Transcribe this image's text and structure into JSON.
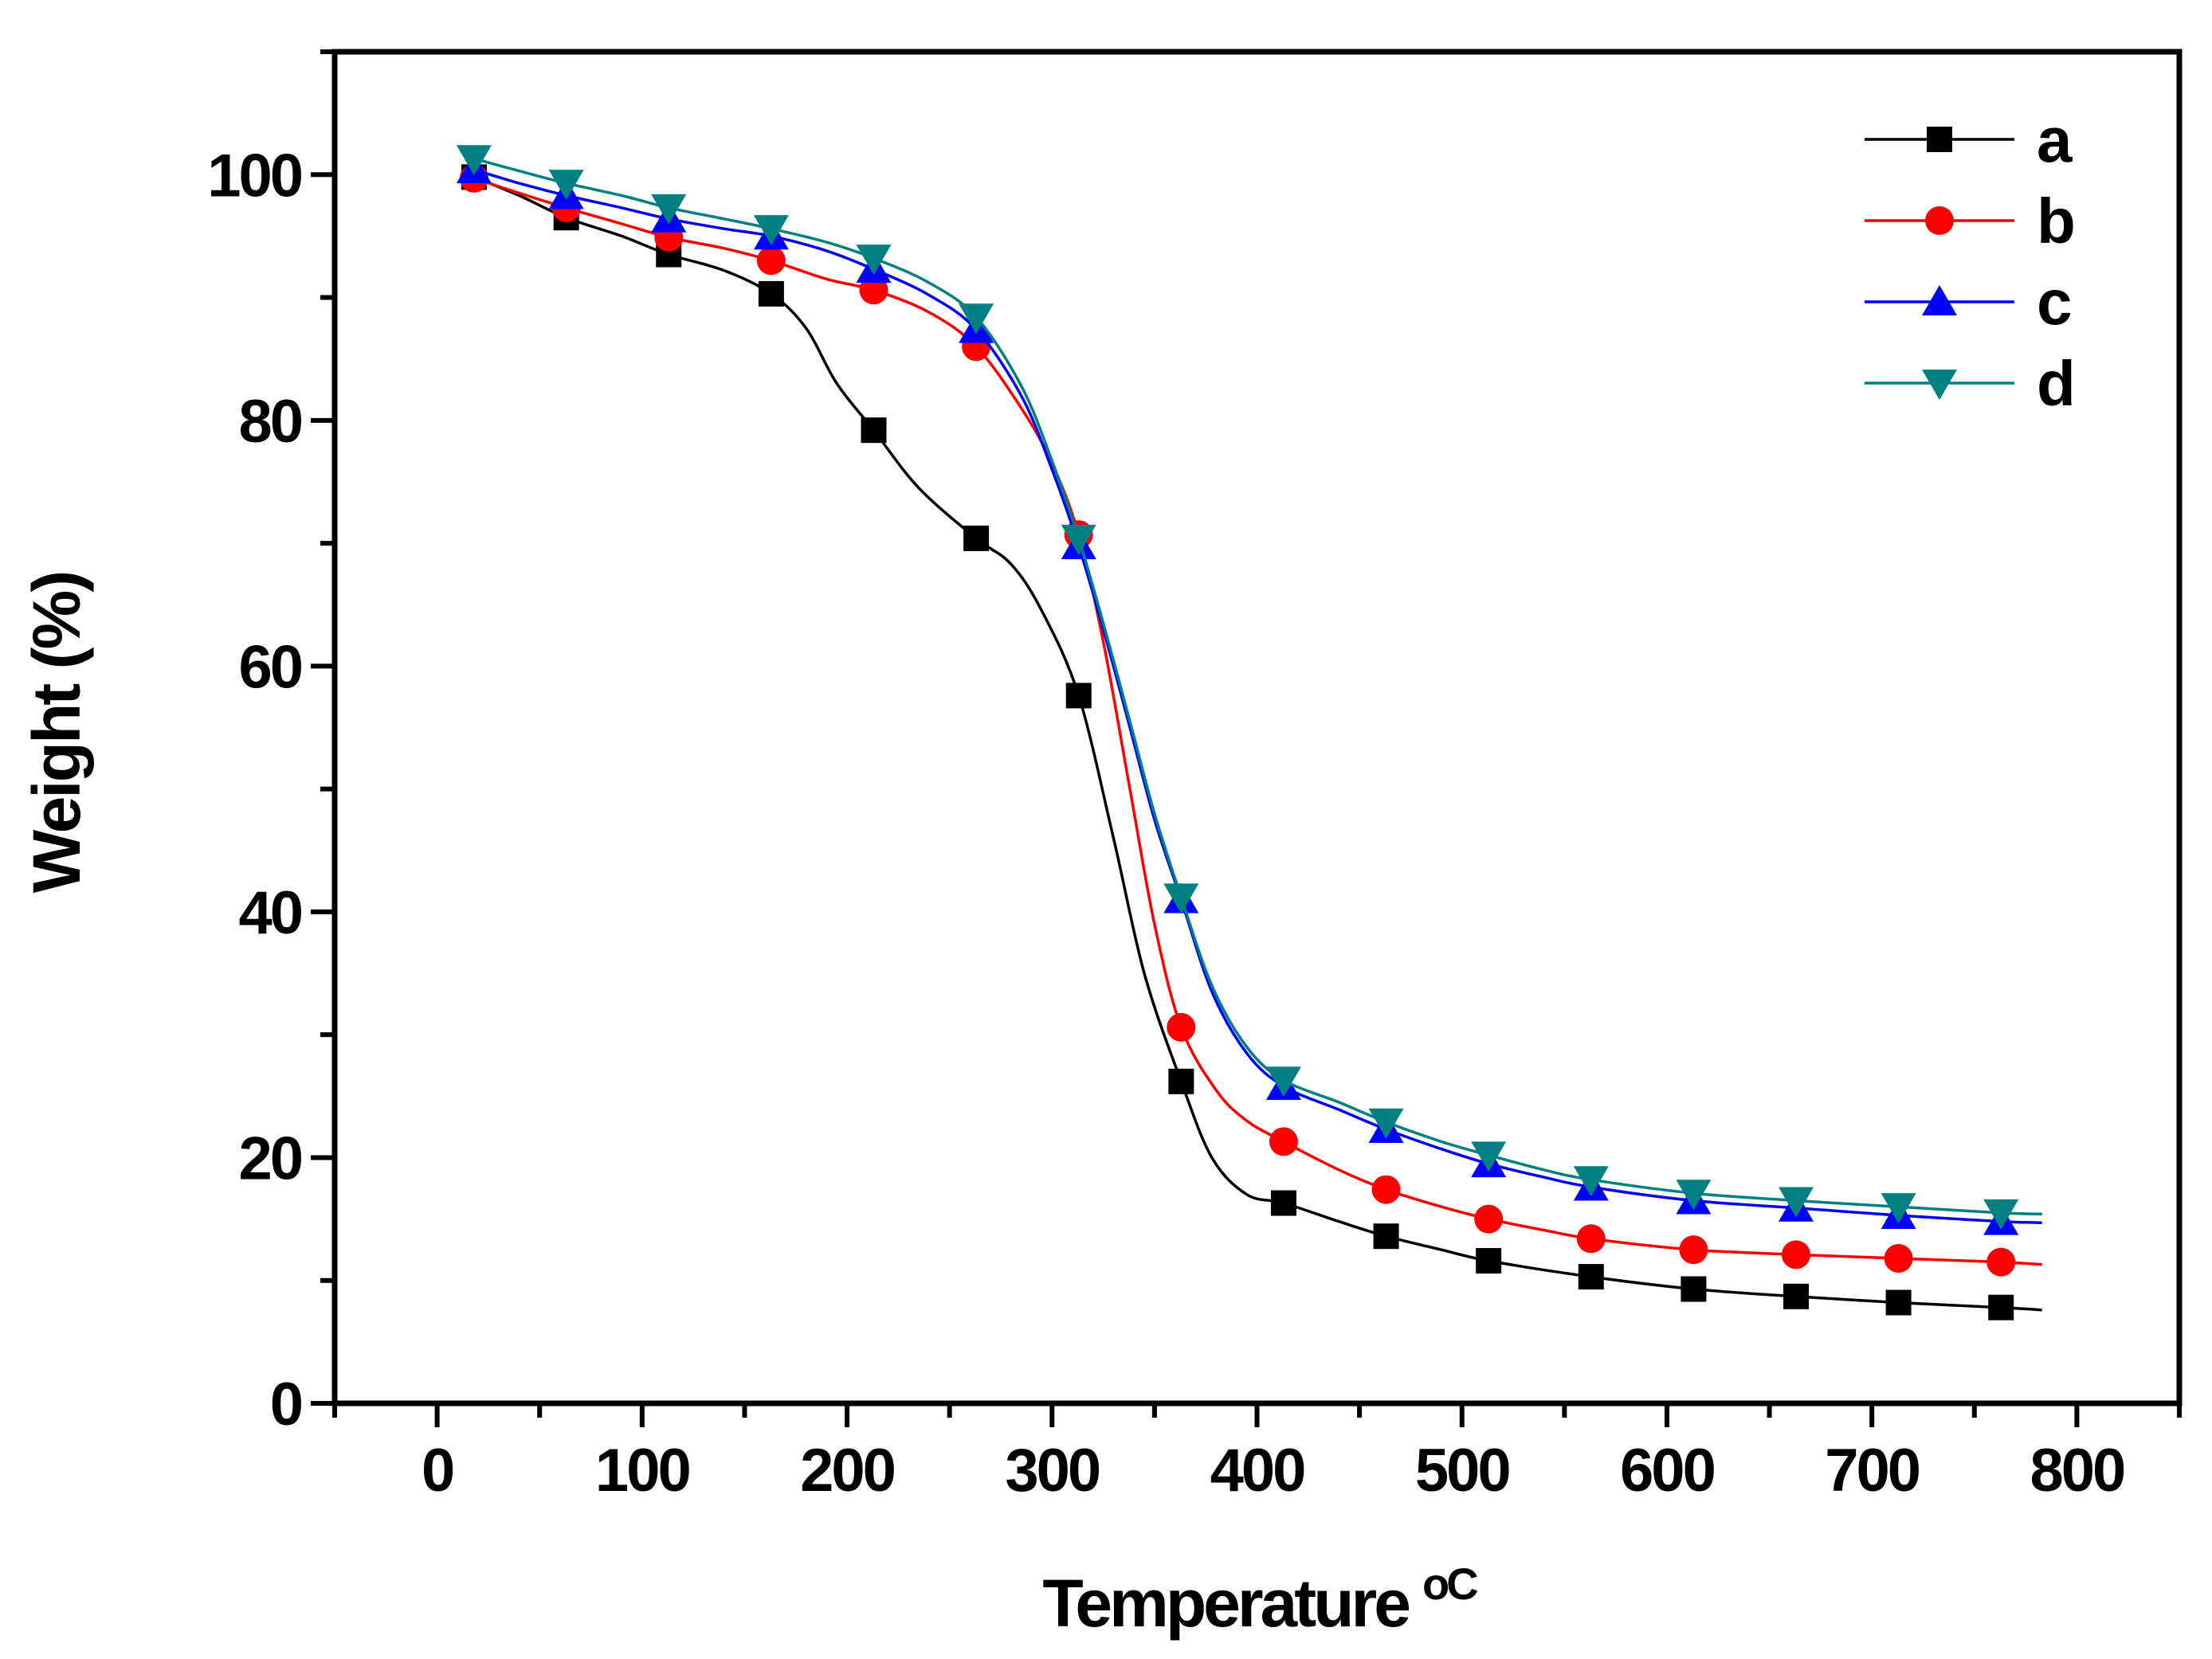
{
  "chart_data": {
    "type": "line",
    "title": "",
    "xlabel": "Temperature",
    "xlabel_unit": "oC",
    "ylabel": "Weight (%)",
    "xlim": [
      -50,
      850
    ],
    "ylim": [
      0,
      110
    ],
    "x_ticks": [
      0,
      100,
      200,
      300,
      400,
      500,
      600,
      700,
      800
    ],
    "x_tick_labels": [
      "0",
      "100",
      "200",
      "300",
      "400",
      "500",
      "600",
      "700",
      "800"
    ],
    "y_ticks": [
      0,
      20,
      40,
      60,
      80,
      100
    ],
    "y_tick_labels": [
      "0",
      "20",
      "40",
      "60",
      "80",
      "100"
    ],
    "grid": false,
    "legend_position": "top-right",
    "series": [
      {
        "name": "a",
        "color": "#000000",
        "marker": "square",
        "markers": [
          [
            18,
            99.8
          ],
          [
            63,
            96.5
          ],
          [
            113,
            93.5
          ],
          [
            163,
            90.3
          ],
          [
            213,
            79.2
          ],
          [
            263,
            70.4
          ],
          [
            313,
            57.6
          ],
          [
            363,
            26.2
          ],
          [
            413,
            16.3
          ],
          [
            463,
            13.6
          ],
          [
            513,
            11.6
          ],
          [
            563,
            10.3
          ],
          [
            613,
            9.3
          ],
          [
            663,
            8.7
          ],
          [
            713,
            8.2
          ],
          [
            763,
            7.8
          ]
        ],
        "curve": [
          [
            18,
            99.8
          ],
          [
            40,
            98.3
          ],
          [
            63,
            96.5
          ],
          [
            90,
            95
          ],
          [
            113,
            93.5
          ],
          [
            140,
            92.2
          ],
          [
            163,
            90.3
          ],
          [
            180,
            87.5
          ],
          [
            195,
            83
          ],
          [
            213,
            79.2
          ],
          [
            235,
            74.5
          ],
          [
            263,
            70.4
          ],
          [
            280,
            68.3
          ],
          [
            295,
            64.5
          ],
          [
            313,
            57.6
          ],
          [
            330,
            46
          ],
          [
            345,
            35
          ],
          [
            363,
            26.2
          ],
          [
            378,
            20
          ],
          [
            395,
            17
          ],
          [
            413,
            16.3
          ],
          [
            440,
            14.8
          ],
          [
            463,
            13.6
          ],
          [
            490,
            12.5
          ],
          [
            513,
            11.6
          ],
          [
            563,
            10.3
          ],
          [
            613,
            9.3
          ],
          [
            663,
            8.7
          ],
          [
            713,
            8.2
          ],
          [
            763,
            7.8
          ],
          [
            783,
            7.6
          ]
        ]
      },
      {
        "name": "b",
        "color": "#ff0000",
        "marker": "circle",
        "markers": [
          [
            18,
            99.7
          ],
          [
            63,
            97.3
          ],
          [
            113,
            94.9
          ],
          [
            163,
            93
          ],
          [
            213,
            90.6
          ],
          [
            263,
            86
          ],
          [
            313,
            70.7
          ],
          [
            363,
            30.6
          ],
          [
            413,
            21.3
          ],
          [
            463,
            17.4
          ],
          [
            513,
            15
          ],
          [
            563,
            13.4
          ],
          [
            613,
            12.5
          ],
          [
            663,
            12.1
          ],
          [
            713,
            11.8
          ],
          [
            763,
            11.5
          ]
        ],
        "curve": [
          [
            18,
            99.7
          ],
          [
            40,
            98.5
          ],
          [
            63,
            97.3
          ],
          [
            90,
            96
          ],
          [
            113,
            94.9
          ],
          [
            140,
            94
          ],
          [
            163,
            93
          ],
          [
            190,
            91.5
          ],
          [
            213,
            90.6
          ],
          [
            240,
            88.8
          ],
          [
            263,
            86
          ],
          [
            285,
            81
          ],
          [
            300,
            76.5
          ],
          [
            313,
            70.7
          ],
          [
            325,
            62
          ],
          [
            338,
            50
          ],
          [
            350,
            39
          ],
          [
            363,
            30.6
          ],
          [
            380,
            25.5
          ],
          [
            395,
            23
          ],
          [
            413,
            21.3
          ],
          [
            440,
            19
          ],
          [
            463,
            17.4
          ],
          [
            490,
            16
          ],
          [
            513,
            15
          ],
          [
            540,
            14.1
          ],
          [
            563,
            13.4
          ],
          [
            613,
            12.5
          ],
          [
            663,
            12.1
          ],
          [
            713,
            11.8
          ],
          [
            763,
            11.5
          ],
          [
            783,
            11.3
          ]
        ]
      },
      {
        "name": "c",
        "color": "#0000ff",
        "marker": "triangle-up",
        "markers": [
          [
            18,
            100.4
          ],
          [
            63,
            98.3
          ],
          [
            113,
            96.4
          ],
          [
            163,
            95
          ],
          [
            213,
            92.3
          ],
          [
            263,
            87.4
          ],
          [
            313,
            69.8
          ],
          [
            363,
            41
          ],
          [
            413,
            25.8
          ],
          [
            463,
            22.3
          ],
          [
            513,
            19.5
          ],
          [
            563,
            17.6
          ],
          [
            613,
            16.5
          ],
          [
            663,
            15.9
          ],
          [
            713,
            15.3
          ],
          [
            763,
            14.8
          ]
        ],
        "curve": [
          [
            18,
            100.4
          ],
          [
            40,
            99.3
          ],
          [
            63,
            98.3
          ],
          [
            90,
            97.3
          ],
          [
            113,
            96.4
          ],
          [
            140,
            95.6
          ],
          [
            163,
            95
          ],
          [
            190,
            93.8
          ],
          [
            213,
            92.3
          ],
          [
            240,
            90.2
          ],
          [
            263,
            87.4
          ],
          [
            285,
            82
          ],
          [
            300,
            76
          ],
          [
            313,
            69.8
          ],
          [
            325,
            63
          ],
          [
            338,
            55
          ],
          [
            350,
            47.5
          ],
          [
            363,
            41
          ],
          [
            378,
            33.5
          ],
          [
            395,
            28.5
          ],
          [
            413,
            25.8
          ],
          [
            440,
            23.9
          ],
          [
            463,
            22.3
          ],
          [
            490,
            20.7
          ],
          [
            513,
            19.5
          ],
          [
            540,
            18.4
          ],
          [
            563,
            17.6
          ],
          [
            613,
            16.5
          ],
          [
            663,
            15.9
          ],
          [
            713,
            15.3
          ],
          [
            763,
            14.8
          ],
          [
            783,
            14.7
          ]
        ]
      },
      {
        "name": "d",
        "color": "#008080",
        "marker": "triangle-down",
        "markers": [
          [
            18,
            101.3
          ],
          [
            63,
            99.3
          ],
          [
            113,
            97.3
          ],
          [
            163,
            95.6
          ],
          [
            213,
            93.2
          ],
          [
            263,
            88.4
          ],
          [
            313,
            70.4
          ],
          [
            363,
            41.2
          ],
          [
            413,
            26.3
          ],
          [
            463,
            22.9
          ],
          [
            513,
            20.2
          ],
          [
            563,
            18.2
          ],
          [
            613,
            17.1
          ],
          [
            663,
            16.5
          ],
          [
            713,
            16
          ],
          [
            763,
            15.5
          ]
        ],
        "curve": [
          [
            18,
            101.3
          ],
          [
            40,
            100.3
          ],
          [
            63,
            99.3
          ],
          [
            90,
            98.3
          ],
          [
            113,
            97.3
          ],
          [
            140,
            96.4
          ],
          [
            163,
            95.6
          ],
          [
            190,
            94.5
          ],
          [
            213,
            93.2
          ],
          [
            240,
            91.2
          ],
          [
            263,
            88.4
          ],
          [
            285,
            82.8
          ],
          [
            300,
            76.7
          ],
          [
            313,
            70.4
          ],
          [
            325,
            63.5
          ],
          [
            338,
            55.5
          ],
          [
            350,
            48
          ],
          [
            363,
            41.2
          ],
          [
            378,
            34
          ],
          [
            395,
            29
          ],
          [
            413,
            26.3
          ],
          [
            440,
            24.5
          ],
          [
            463,
            22.9
          ],
          [
            490,
            21.3
          ],
          [
            513,
            20.2
          ],
          [
            540,
            19
          ],
          [
            563,
            18.2
          ],
          [
            613,
            17.1
          ],
          [
            663,
            16.5
          ],
          [
            713,
            16
          ],
          [
            763,
            15.5
          ],
          [
            783,
            15.4
          ]
        ]
      }
    ]
  }
}
